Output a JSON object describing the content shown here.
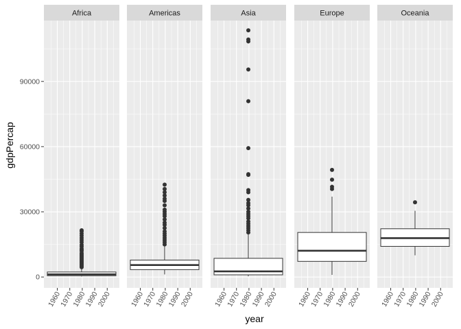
{
  "chart_data": {
    "type": "boxplot",
    "xlabel": "year",
    "ylabel": "gdpPercap",
    "x_range": [
      1952,
      2007
    ],
    "x_ticks": [
      1960,
      1970,
      1980,
      1990,
      2000
    ],
    "ylim": [
      -5000,
      118000
    ],
    "y_ticks": [
      0,
      30000,
      60000,
      90000
    ],
    "y_tick_labels": [
      "0",
      "30000",
      "60000",
      "90000"
    ],
    "grid": true,
    "colors": {
      "panel_bg": "#ebebeb",
      "strip_bg": "#d9d9d9",
      "grid_major": "#ffffff",
      "box_fill": "#ffffff",
      "box_line": "#333333"
    },
    "facets": [
      {
        "label": "Africa",
        "q1": 600,
        "median": 1200,
        "q3": 2300,
        "whisker_low": 240,
        "whisker_high": 4200,
        "outliers": [
          4500,
          5000,
          5500,
          6000,
          6500,
          7000,
          7500,
          8000,
          8500,
          9000,
          9500,
          10000,
          10500,
          11000,
          12000,
          12500,
          13000,
          14000,
          14800,
          16000,
          17000,
          18000,
          19000,
          20000,
          21000,
          21500
        ]
      },
      {
        "label": "Americas",
        "q1": 3400,
        "median": 5500,
        "q3": 7800,
        "whisker_low": 1200,
        "whisker_high": 14500,
        "outliers": [
          15000,
          16000,
          17000,
          18000,
          19000,
          20000,
          21000,
          22500,
          24000,
          25000,
          26500,
          28000,
          29000,
          30000,
          31000,
          33000,
          35000,
          36000,
          37500,
          39000,
          40500,
          42500
        ]
      },
      {
        "label": "Asia",
        "q1": 1000,
        "median": 2600,
        "q3": 8600,
        "whisker_low": 330,
        "whisker_high": 20000,
        "outliers": [
          20500,
          21500,
          22500,
          23500,
          24500,
          25500,
          27000,
          28000,
          29000,
          30000,
          31500,
          33000,
          34000,
          35500,
          39000,
          40000,
          47000,
          47300,
          59300,
          80900,
          95500,
          108400,
          109300,
          113500
        ]
      },
      {
        "label": "Europe",
        "q1": 7200,
        "median": 12100,
        "q3": 20500,
        "whisker_low": 1000,
        "whisker_high": 37000,
        "outliers": [
          40500,
          41500,
          44800,
          49300
        ]
      },
      {
        "label": "Oceania",
        "q1": 14100,
        "median": 17900,
        "q3": 22200,
        "whisker_low": 10000,
        "whisker_high": 30500,
        "outliers": [
          34400
        ]
      }
    ]
  }
}
